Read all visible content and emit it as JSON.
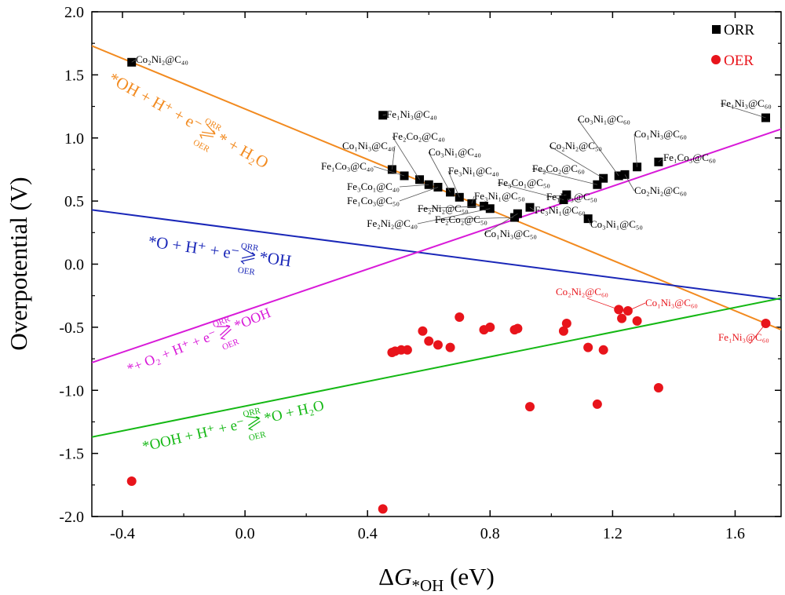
{
  "chart_data": {
    "type": "scatter",
    "x_axis": {
      "label_prefix": "Δ",
      "label_var": "G",
      "label_sub": "*OH",
      "label_unit": " (eV)",
      "range": [
        -0.5,
        1.75
      ],
      "ticks": [
        "-0.4",
        "0.0",
        "0.4",
        "0.8",
        "1.2",
        "1.6"
      ],
      "tick_values": [
        -0.4,
        0.0,
        0.4,
        0.8,
        1.2,
        1.6
      ]
    },
    "y_axis": {
      "label": "Overpotential (V)",
      "range": [
        -2.0,
        2.0
      ],
      "ticks": [
        "2.0",
        "1.5",
        "1.0",
        "0.5",
        "0.0",
        "-0.5",
        "-1.0",
        "-1.5",
        "-2.0"
      ],
      "tick_values": [
        2.0,
        1.5,
        1.0,
        0.5,
        0.0,
        -0.5,
        -1.0,
        -1.5,
        -2.0
      ]
    },
    "legend": {
      "placement": "top-right",
      "entries": [
        {
          "name": "ORR",
          "marker": "square",
          "color": "#000000"
        },
        {
          "name": "OER",
          "marker": "circle",
          "color": "#e8141b"
        }
      ]
    },
    "lines": [
      {
        "name": "OH-to-H2O",
        "color": "#f28a1f",
        "x": [
          -0.5,
          1.75
        ],
        "y": [
          1.73,
          -0.52
        ]
      },
      {
        "name": "O-to-OH",
        "color": "#1a27b8",
        "x": [
          -0.5,
          1.75
        ],
        "y": [
          0.43,
          -0.28
        ]
      },
      {
        "name": "O2-to-OOH",
        "color": "#d81ad8",
        "x": [
          -0.5,
          1.75
        ],
        "y": [
          -0.78,
          1.07
        ]
      },
      {
        "name": "OOH-to-O",
        "color": "#14b814",
        "x": [
          -0.5,
          1.75
        ],
        "y": [
          -1.37,
          -0.27
        ]
      }
    ],
    "equations": [
      {
        "color": "#f28a1f",
        "left": "*OH + H⁺ + e⁻",
        "right": "* + H₂O",
        "top": "ORR",
        "bottom": "OER"
      },
      {
        "color": "#1a27b8",
        "left": "*O + H⁺ + e⁻",
        "right": "*OH",
        "top": "ORR",
        "bottom": "OER"
      },
      {
        "color": "#d81ad8",
        "left": "*+ O₂ + H⁺ + e⁻",
        "right": "*OOH",
        "top": "ORR",
        "bottom": "OER"
      },
      {
        "color": "#14b814",
        "left": "*OOH + H⁺ + e⁻",
        "right": "*O + H₂O",
        "top": "ORR",
        "bottom": "OER"
      }
    ],
    "orr_points": [
      {
        "x": -0.37,
        "y": 1.6,
        "label": "Co₂Ni₂@C₄₀"
      },
      {
        "x": 0.45,
        "y": 1.18,
        "label": "Fe₁Ni₃@C₄₀"
      },
      {
        "x": 0.48,
        "y": 0.75,
        "label": "Co₁Ni₃@C₄₀"
      },
      {
        "x": 0.52,
        "y": 0.7,
        "label": "Fe₁Co₃@C₄₀"
      },
      {
        "x": 0.57,
        "y": 0.67,
        "label": "Fe₂Co₂@C₄₀"
      },
      {
        "x": 0.6,
        "y": 0.63,
        "label": "Fe₃Co₁@C₄₀"
      },
      {
        "x": 0.63,
        "y": 0.61,
        "label": "Fe₁Co₃@C₅₀"
      },
      {
        "x": 0.67,
        "y": 0.57,
        "label": "Co₃Ni₁@C₄₀"
      },
      {
        "x": 0.7,
        "y": 0.53,
        "label": "Fe₃Ni₁@C₄₀"
      },
      {
        "x": 0.74,
        "y": 0.48,
        "label": "Fe₃Ni₁@C₅₀"
      },
      {
        "x": 0.78,
        "y": 0.46,
        "label": "Fe₂Ni₂@C₅₀"
      },
      {
        "x": 0.8,
        "y": 0.44,
        "label": "Fe₂Ni₂@C₄₀"
      },
      {
        "x": 0.88,
        "y": 0.37,
        "label": "Fe₂Co₂@C₅₀"
      },
      {
        "x": 0.89,
        "y": 0.4,
        "label": "Co₁Ni₃@C₅₀"
      },
      {
        "x": 0.93,
        "y": 0.45,
        "label": "Fe₃Ni₁@C₆₀"
      },
      {
        "x": 1.04,
        "y": 0.51,
        "label": "Fe₃Co₁@C₅₀"
      },
      {
        "x": 1.05,
        "y": 0.55,
        "label": "Fe₁Ni₃@C₅₀"
      },
      {
        "x": 1.12,
        "y": 0.36,
        "label": "Co₃Ni₁@C₅₀"
      },
      {
        "x": 1.15,
        "y": 0.63,
        "label": "Fe₂Co₂@C₆₀"
      },
      {
        "x": 1.17,
        "y": 0.68,
        "label": "Co₂Ni₂@C₅₀"
      },
      {
        "x": 1.22,
        "y": 0.7,
        "label": "Co₃Ni₁@C₆₀"
      },
      {
        "x": 1.24,
        "y": 0.71,
        "label": "Co₂Ni₂@C₆₀"
      },
      {
        "x": 1.28,
        "y": 0.77,
        "label": "Co₁Ni₃@C₆₀"
      },
      {
        "x": 1.35,
        "y": 0.81,
        "label": "Fe₁Co₃@C₆₀"
      },
      {
        "x": 1.7,
        "y": 1.16,
        "label": "Fe₁Ni₃@C₆₀"
      }
    ],
    "oer_points": [
      {
        "x": -0.37,
        "y": -1.72
      },
      {
        "x": 0.45,
        "y": -1.94
      },
      {
        "x": 0.48,
        "y": -0.7
      },
      {
        "x": 0.49,
        "y": -0.69
      },
      {
        "x": 0.51,
        "y": -0.68
      },
      {
        "x": 0.53,
        "y": -0.68
      },
      {
        "x": 0.58,
        "y": -0.53
      },
      {
        "x": 0.6,
        "y": -0.61
      },
      {
        "x": 0.63,
        "y": -0.64
      },
      {
        "x": 0.67,
        "y": -0.66
      },
      {
        "x": 0.7,
        "y": -0.42
      },
      {
        "x": 0.78,
        "y": -0.52
      },
      {
        "x": 0.8,
        "y": -0.5
      },
      {
        "x": 0.88,
        "y": -0.52
      },
      {
        "x": 0.89,
        "y": -0.51
      },
      {
        "x": 0.93,
        "y": -1.13
      },
      {
        "x": 1.04,
        "y": -0.53
      },
      {
        "x": 1.05,
        "y": -0.47
      },
      {
        "x": 1.12,
        "y": -0.66
      },
      {
        "x": 1.15,
        "y": -1.11
      },
      {
        "x": 1.17,
        "y": -0.68
      },
      {
        "x": 1.22,
        "y": -0.36
      },
      {
        "x": 1.23,
        "y": -0.43
      },
      {
        "x": 1.25,
        "y": -0.37
      },
      {
        "x": 1.28,
        "y": -0.45
      },
      {
        "x": 1.35,
        "y": -0.98
      },
      {
        "x": 1.7,
        "y": -0.47
      }
    ],
    "oer_labels": [
      {
        "text": "Co₂Ni₂@C₆₀",
        "x": 1.22,
        "y": -0.36
      },
      {
        "text": "Co₁Ni₃@C₆₀",
        "x": 1.25,
        "y": -0.37
      },
      {
        "text": "Fe₁Ni₃@C₆₀",
        "x": 1.7,
        "y": -0.47
      }
    ]
  }
}
